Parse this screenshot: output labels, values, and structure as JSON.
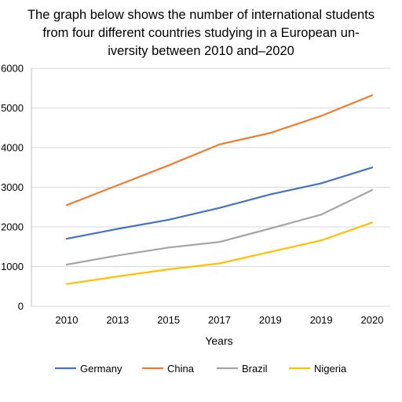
{
  "chart_data": {
    "type": "line",
    "title_lines": [
      "The graph below shows the number of international students",
      "from four different countries studying in a European un-",
      "iversity between 2010 and–2020"
    ],
    "categories": [
      "2010",
      "2013",
      "2015",
      "2017",
      "2019",
      "2019",
      "2020"
    ],
    "xlabel": "Years",
    "ylabel": "",
    "ylim": [
      0,
      6000
    ],
    "yticks": [
      0,
      1000,
      2000,
      3000,
      4000,
      5000,
      6000
    ],
    "ytick_labels": [
      "0",
      "1000",
      "2000",
      "3000",
      "4000",
      "5000",
      "6000"
    ],
    "grid": true,
    "legend_position": "bottom",
    "series": [
      {
        "name": "Germany",
        "color": "#4472C4",
        "values": [
          1700,
          1950,
          2180,
          2480,
          2820,
          3100,
          3500
        ]
      },
      {
        "name": "China",
        "color": "#ED7D31",
        "values": [
          2550,
          3050,
          3550,
          4080,
          4370,
          4800,
          5320
        ]
      },
      {
        "name": "Brazil",
        "color": "#A5A5A5",
        "values": [
          1050,
          1280,
          1480,
          1620,
          1960,
          2310,
          2930
        ]
      },
      {
        "name": "Nigeria",
        "color": "#FFC000",
        "values": [
          560,
          750,
          930,
          1080,
          1370,
          1660,
          2110
        ]
      }
    ]
  }
}
